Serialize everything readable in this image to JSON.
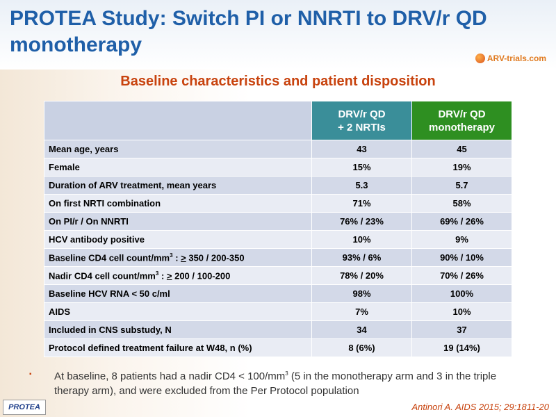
{
  "title": "PROTEA Study: Switch PI or NNRTI to DRV/r QD monotherapy",
  "logo_text": "ARV-trials.com",
  "subtitle": "Baseline characteristics and patient disposition",
  "table": {
    "col_a": {
      "line1": "DRV/r QD",
      "line2": "+ 2 NRTIs"
    },
    "col_b": {
      "line1": "DRV/r QD",
      "line2": "monotherapy"
    },
    "rows": [
      {
        "label": "Mean age, years",
        "a": "43",
        "b": "45"
      },
      {
        "label": "Female",
        "a": "15%",
        "b": "19%"
      },
      {
        "label": "Duration of ARV treatment, mean years",
        "a": "5.3",
        "b": "5.7"
      },
      {
        "label": "On first NRTI combination",
        "a": "71%",
        "b": "58%"
      },
      {
        "label": "On PI/r / On NNRTI",
        "a": "76% / 23%",
        "b": "69% / 26%"
      },
      {
        "label": "HCV antibody positive",
        "a": "10%",
        "b": "9%"
      },
      {
        "label_pre": "Baseline CD4 cell count/mm",
        "label_sup": "3",
        "label_mid": " : ",
        "label_u": ">",
        "label_post": " 350 / 200-350",
        "a": "93% / 6%",
        "b": "90% / 10%"
      },
      {
        "label_pre": "Nadir CD4 cell count/mm",
        "label_sup": "3",
        "label_mid": " : ",
        "label_u": ">",
        "label_post": " 200 / 100-200",
        "a": "78% / 20%",
        "b": "70% / 26%"
      },
      {
        "label": "Baseline HCV RNA < 50 c/ml",
        "a": "98%",
        "b": "100%"
      },
      {
        "label": "AIDS",
        "a": "7%",
        "b": "10%"
      },
      {
        "label": "Included in CNS substudy, N",
        "a": "34",
        "b": "37"
      },
      {
        "label": "Protocol defined treatment failure at W48, n (%)",
        "a": "8 (6%)",
        "b": "19 (14%)"
      }
    ]
  },
  "note": {
    "bullet": "▪",
    "pre": "At baseline, 8 patients had a nadir CD4 < 100/mm",
    "sup": "3",
    "post": " (5 in the monotherapy arm and 3 in the triple therapy arm), and were excluded from the Per Protocol population"
  },
  "footer": {
    "tag": "PROTEA",
    "citation": "Antinori A. AIDS 2015; 29:1811-20"
  }
}
